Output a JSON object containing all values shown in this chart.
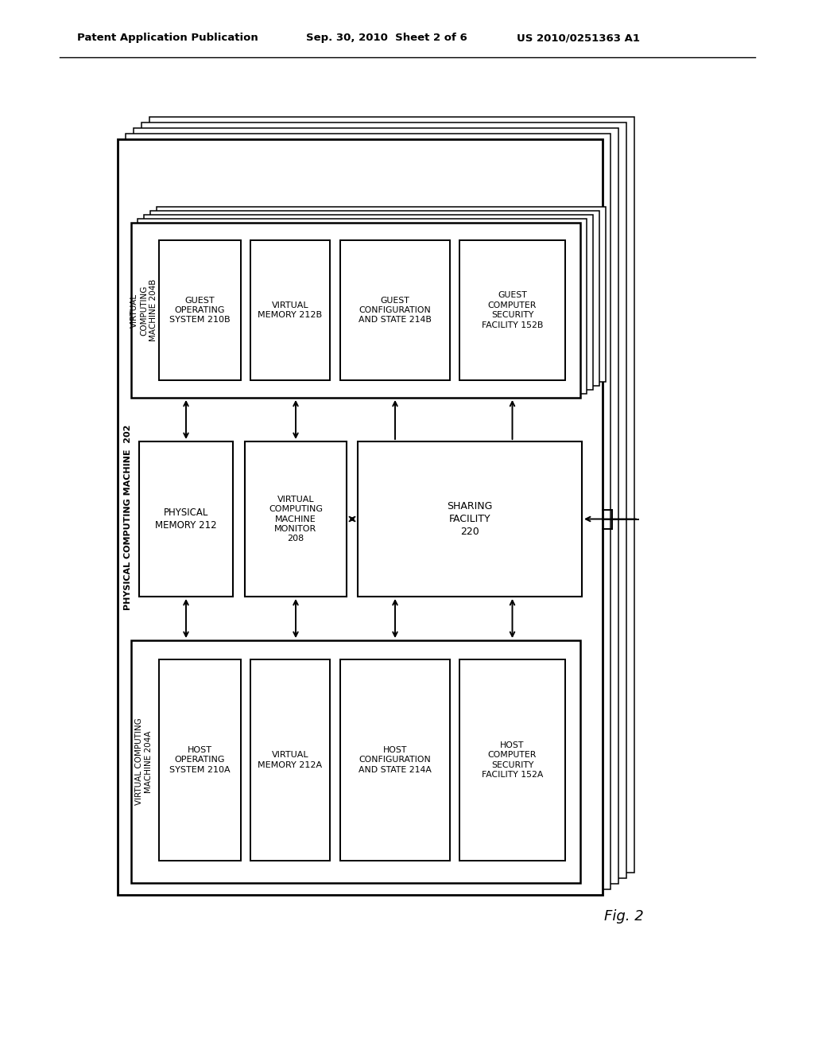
{
  "bg_color": "#ffffff",
  "header_left": "Patent Application Publication",
  "header_mid": "Sep. 30, 2010  Sheet 2 of 6",
  "header_right": "US 2010/0251363 A1",
  "fig_label": "Fig. 2",
  "phys_machine_label": "PHYSICAL COMPUTING MACHINE  202",
  "vcm_monitor_label": "VIRTUAL\nCOMPUTING\nMACHINE\nMONITOR\n208",
  "phys_mem_label": "PHYSICAL\nMEMORY 212",
  "sharing_facility_label": "SHARING\nFACILITY\n220",
  "host_vm_label": "VIRTUAL COMPUTING\nMACHINE 204A",
  "host_os_label": "HOST\nOPERATING\nSYSTEM 210A",
  "host_mem_label": "VIRTUAL\nMEMORY 212A",
  "host_config_label": "HOST\nCONFIGURATION\nAND STATE 214A",
  "host_security_label": "HOST\nCOMPUTER\nSECURITY\nFACILITY 152A",
  "guest_vm_label": "VIRTUAL\nCOMPUTING\nMACHINE 204B",
  "guest_os_label": "GUEST\nOPERATING\nSYSTEM 210B",
  "guest_mem_label": "VIRTUAL\nMEMORY 212B",
  "guest_config_label": "GUEST\nCONFIGURATION\nAND STATE 214B",
  "guest_security_label": "GUEST\nCOMPUTER\nSECURITY\nFACILITY 152B"
}
